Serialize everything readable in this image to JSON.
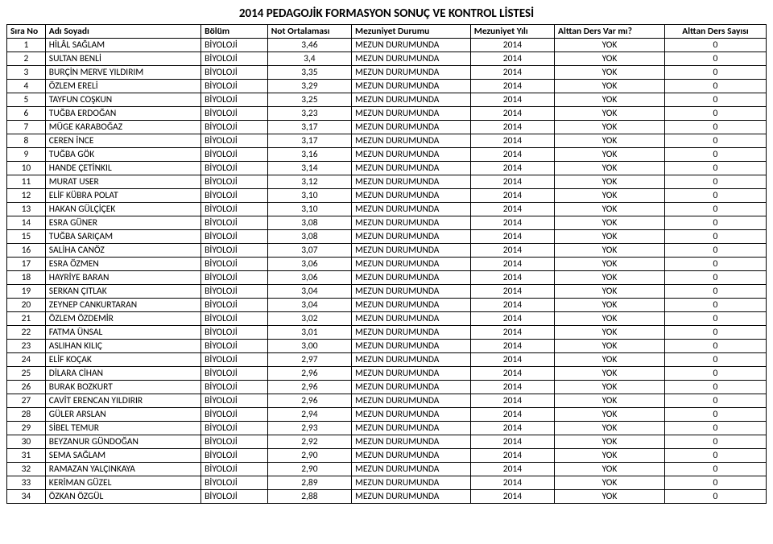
{
  "title": "2014 PEDAGOJİK FORMASYON SONUÇ VE KONTROL LİSTESİ",
  "headers": {
    "no": "Sıra No",
    "name": "Adı Soyadı",
    "dept": "Bölüm",
    "gpa": "Not Ortalaması",
    "gradStatus": "Mezuniyet Durumu",
    "gradYear": "Mezuniyet Yılı",
    "alt1": "Alttan Ders Var mı?",
    "alt2": "Alttan Ders Sayısı"
  },
  "defaults": {
    "dept": "BİYOLOJİ",
    "gradStatus": "MEZUN DURUMUNDA",
    "gradYear": "2014",
    "alt1": "YOK",
    "alt2": "0"
  },
  "rows": [
    {
      "no": "1",
      "name": "HİLÂL SAĞLAM",
      "gpa": "3,46"
    },
    {
      "no": "2",
      "name": "SULTAN BENLİ",
      "gpa": "3,4"
    },
    {
      "no": "3",
      "name": "BURÇİN MERVE YILDIRIM",
      "gpa": "3,35"
    },
    {
      "no": "4",
      "name": "ÖZLEM ERELİ",
      "gpa": "3,29"
    },
    {
      "no": "5",
      "name": "TAYFUN COŞKUN",
      "gpa": "3,25"
    },
    {
      "no": "6",
      "name": "TUĞBA ERDOĞAN",
      "gpa": "3,23"
    },
    {
      "no": "7",
      "name": "MÜGE KARABOĞAZ",
      "gpa": "3,17"
    },
    {
      "no": "8",
      "name": "CEREN İNCE",
      "gpa": "3,17"
    },
    {
      "no": "9",
      "name": "TUĞBA GÖK",
      "gpa": "3,16"
    },
    {
      "no": "10",
      "name": "HANDE ÇETİNKIL",
      "gpa": "3,14"
    },
    {
      "no": "11",
      "name": "MURAT USER",
      "gpa": "3,12"
    },
    {
      "no": "12",
      "name": "ELİF KÜBRA POLAT",
      "gpa": "3,10"
    },
    {
      "no": "13",
      "name": "HAKAN GÜLÇİÇEK",
      "gpa": "3,10"
    },
    {
      "no": "14",
      "name": "ESRA GÜNER",
      "gpa": "3,08"
    },
    {
      "no": "15",
      "name": "TUĞBA SARIÇAM",
      "gpa": "3,08"
    },
    {
      "no": "16",
      "name": "SALİHA CANÖZ",
      "gpa": "3,07"
    },
    {
      "no": "17",
      "name": "ESRA ÖZMEN",
      "gpa": "3,06"
    },
    {
      "no": "18",
      "name": "HAYRİYE BARAN",
      "gpa": "3,06"
    },
    {
      "no": "19",
      "name": "SERKAN ÇITLAK",
      "gpa": "3,04"
    },
    {
      "no": "20",
      "name": "ZEYNEP CANKURTARAN",
      "gpa": "3,04"
    },
    {
      "no": "21",
      "name": "ÖZLEM ÖZDEMİR",
      "gpa": "3,02"
    },
    {
      "no": "22",
      "name": "FATMA ÜNSAL",
      "gpa": "3,01"
    },
    {
      "no": "23",
      "name": "ASLIHAN KILIÇ",
      "gpa": "3,00"
    },
    {
      "no": "24",
      "name": "ELİF KOÇAK",
      "gpa": "2,97"
    },
    {
      "no": "25",
      "name": "DİLARA CİHAN",
      "gpa": "2,96"
    },
    {
      "no": "26",
      "name": "BURAK BOZKURT",
      "gpa": "2,96"
    },
    {
      "no": "27",
      "name": "CAVİT ERENCAN YILDIRIR",
      "gpa": "2,96"
    },
    {
      "no": "28",
      "name": "GÜLER ARSLAN",
      "gpa": "2,94"
    },
    {
      "no": "29",
      "name": "SİBEL TEMUR",
      "gpa": "2,93"
    },
    {
      "no": "30",
      "name": "BEYZANUR GÜNDOĞAN",
      "gpa": "2,92"
    },
    {
      "no": "31",
      "name": "SEMA SAĞLAM",
      "gpa": "2,90"
    },
    {
      "no": "32",
      "name": "RAMAZAN YALÇINKAYA",
      "gpa": "2,90"
    },
    {
      "no": "33",
      "name": "KERİMAN GÜZEL",
      "gpa": "2,89"
    },
    {
      "no": "34",
      "name": "ÖZKAN ÖZGÜL",
      "gpa": "2,88"
    }
  ],
  "styling": {
    "title_fontsize": 15,
    "cell_fontsize": 11.5,
    "border_color": "#000000",
    "background_color": "#ffffff",
    "font_family": "Calibri"
  }
}
